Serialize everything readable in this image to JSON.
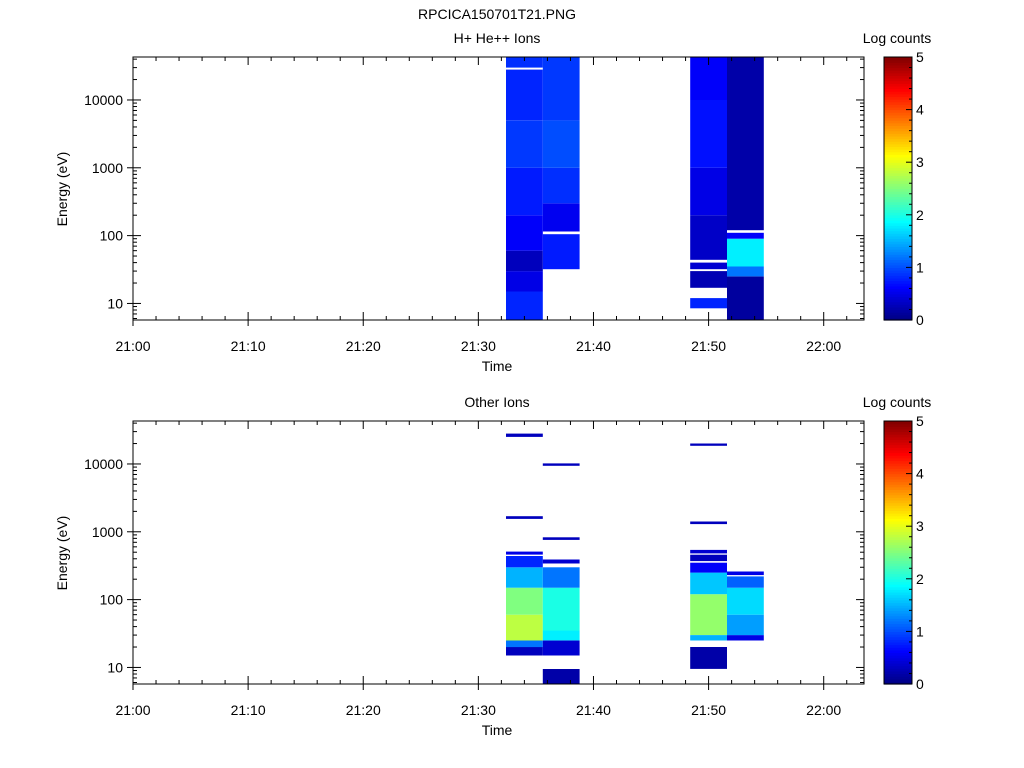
{
  "figure": {
    "title": "RPCICA150701T21.PNG"
  },
  "chart_data": [
    {
      "type": "heatmap",
      "title": "H+ He++ Ions",
      "xlabel": "Time",
      "ylabel": "Energy (eV)",
      "x_unit": "minutes after 21:00",
      "x_range": [
        0,
        63.5
      ],
      "x_ticks": [
        "21:00",
        "21:10",
        "21:20",
        "21:30",
        "21:40",
        "21:50",
        "22:00"
      ],
      "y_scale": "log",
      "y_range": [
        5.7,
        43000
      ],
      "y_ticks": [
        "10",
        "100",
        "1000",
        "10000"
      ],
      "colorbar": {
        "label": "Log counts",
        "range": [
          0,
          5
        ],
        "ticks": [
          "0",
          "1",
          "2",
          "3",
          "4",
          "5"
        ],
        "colormap": "jet"
      },
      "columns": [
        {
          "t_start": 32.4,
          "t_end": 35.6,
          "segments": [
            {
              "e_low": 5.7,
              "e_high": 15,
              "value": 0.8
            },
            {
              "e_low": 15,
              "e_high": 30,
              "value": 0.5
            },
            {
              "e_low": 30,
              "e_high": 60,
              "value": 0.3
            },
            {
              "e_low": 60,
              "e_high": 200,
              "value": 0.6
            },
            {
              "e_low": 200,
              "e_high": 1000,
              "value": 0.75
            },
            {
              "e_low": 1000,
              "e_high": 5000,
              "value": 0.9
            },
            {
              "e_low": 5000,
              "e_high": 28000,
              "value": 0.8
            },
            {
              "e_low": 30000,
              "e_high": 43000,
              "value": 0.85
            }
          ]
        },
        {
          "t_start": 35.6,
          "t_end": 38.8,
          "segments": [
            {
              "e_low": 32,
              "e_high": 105,
              "value": 0.75
            },
            {
              "e_low": 115,
              "e_high": 300,
              "value": 0.55
            },
            {
              "e_low": 300,
              "e_high": 1000,
              "value": 0.85
            },
            {
              "e_low": 1000,
              "e_high": 5000,
              "value": 1.0
            },
            {
              "e_low": 5000,
              "e_high": 43000,
              "value": 0.9
            }
          ]
        },
        {
          "t_start": 48.4,
          "t_end": 51.6,
          "segments": [
            {
              "e_low": 8.5,
              "e_high": 12,
              "value": 0.8
            },
            {
              "e_low": 17,
              "e_high": 30,
              "value": 0.25
            },
            {
              "e_low": 32,
              "e_high": 40,
              "value": 0.4
            },
            {
              "e_low": 44,
              "e_high": 200,
              "value": 0.35
            },
            {
              "e_low": 200,
              "e_high": 1000,
              "value": 0.5
            },
            {
              "e_low": 1000,
              "e_high": 10000,
              "value": 0.7
            },
            {
              "e_low": 10000,
              "e_high": 43000,
              "value": 0.6
            }
          ]
        },
        {
          "t_start": 51.6,
          "t_end": 54.8,
          "segments": [
            {
              "e_low": 5.7,
              "e_high": 25,
              "value": 0.15
            },
            {
              "e_low": 25,
              "e_high": 35,
              "value": 1.2
            },
            {
              "e_low": 35,
              "e_high": 90,
              "value": 1.8
            },
            {
              "e_low": 90,
              "e_high": 110,
              "value": 0.6
            },
            {
              "e_low": 120,
              "e_high": 43000,
              "value": 0.2
            }
          ]
        }
      ]
    },
    {
      "type": "heatmap",
      "title": "Other Ions",
      "xlabel": "Time",
      "ylabel": "Energy (eV)",
      "x_unit": "minutes after 21:00",
      "x_range": [
        0,
        63.5
      ],
      "x_ticks": [
        "21:00",
        "21:10",
        "21:20",
        "21:30",
        "21:40",
        "21:50",
        "22:00"
      ],
      "y_scale": "log",
      "y_range": [
        5.7,
        43000
      ],
      "y_ticks": [
        "10",
        "100",
        "1000",
        "10000"
      ],
      "colorbar": {
        "label": "Log counts",
        "range": [
          0,
          5
        ],
        "ticks": [
          "0",
          "1",
          "2",
          "3",
          "4",
          "5"
        ],
        "colormap": "jet"
      },
      "columns": [
        {
          "t_start": 32.4,
          "t_end": 35.6,
          "segments": [
            {
              "e_low": 15,
              "e_high": 20,
              "value": 0.3
            },
            {
              "e_low": 20,
              "e_high": 25,
              "value": 1.2
            },
            {
              "e_low": 25,
              "e_high": 60,
              "value": 2.8
            },
            {
              "e_low": 60,
              "e_high": 150,
              "value": 2.5
            },
            {
              "e_low": 150,
              "e_high": 300,
              "value": 1.5
            },
            {
              "e_low": 300,
              "e_high": 440,
              "value": 0.8
            },
            {
              "e_low": 460,
              "e_high": 510,
              "value": 0.5
            },
            {
              "e_low": 1550,
              "e_high": 1700,
              "value": 0.3
            },
            {
              "e_low": 25000,
              "e_high": 28000,
              "value": 0.3
            }
          ]
        },
        {
          "t_start": 35.6,
          "t_end": 38.8,
          "segments": [
            {
              "e_low": 5.7,
              "e_high": 9.5,
              "value": 0.2
            },
            {
              "e_low": 15,
              "e_high": 25,
              "value": 0.4
            },
            {
              "e_low": 25,
              "e_high": 35,
              "value": 1.8
            },
            {
              "e_low": 35,
              "e_high": 150,
              "value": 2.0
            },
            {
              "e_low": 150,
              "e_high": 300,
              "value": 1.2
            },
            {
              "e_low": 340,
              "e_high": 390,
              "value": 0.4
            },
            {
              "e_low": 760,
              "e_high": 830,
              "value": 0.3
            },
            {
              "e_low": 9400,
              "e_high": 10200,
              "value": 0.3
            }
          ]
        },
        {
          "t_start": 48.4,
          "t_end": 51.6,
          "segments": [
            {
              "e_low": 9.5,
              "e_high": 20,
              "value": 0.2
            },
            {
              "e_low": 25,
              "e_high": 30,
              "value": 1.5
            },
            {
              "e_low": 30,
              "e_high": 120,
              "value": 2.6
            },
            {
              "e_low": 120,
              "e_high": 250,
              "value": 1.6
            },
            {
              "e_low": 250,
              "e_high": 350,
              "value": 0.6
            },
            {
              "e_low": 370,
              "e_high": 460,
              "value": 0.3
            },
            {
              "e_low": 480,
              "e_high": 540,
              "value": 0.4
            },
            {
              "e_low": 1300,
              "e_high": 1420,
              "value": 0.3
            },
            {
              "e_low": 18500,
              "e_high": 20000,
              "value": 0.3
            }
          ]
        },
        {
          "t_start": 51.6,
          "t_end": 54.8,
          "segments": [
            {
              "e_low": 25,
              "e_high": 30,
              "value": 0.5
            },
            {
              "e_low": 30,
              "e_high": 60,
              "value": 1.4
            },
            {
              "e_low": 60,
              "e_high": 150,
              "value": 1.7
            },
            {
              "e_low": 150,
              "e_high": 220,
              "value": 1.1
            },
            {
              "e_low": 230,
              "e_high": 260,
              "value": 0.5
            }
          ]
        }
      ]
    }
  ]
}
